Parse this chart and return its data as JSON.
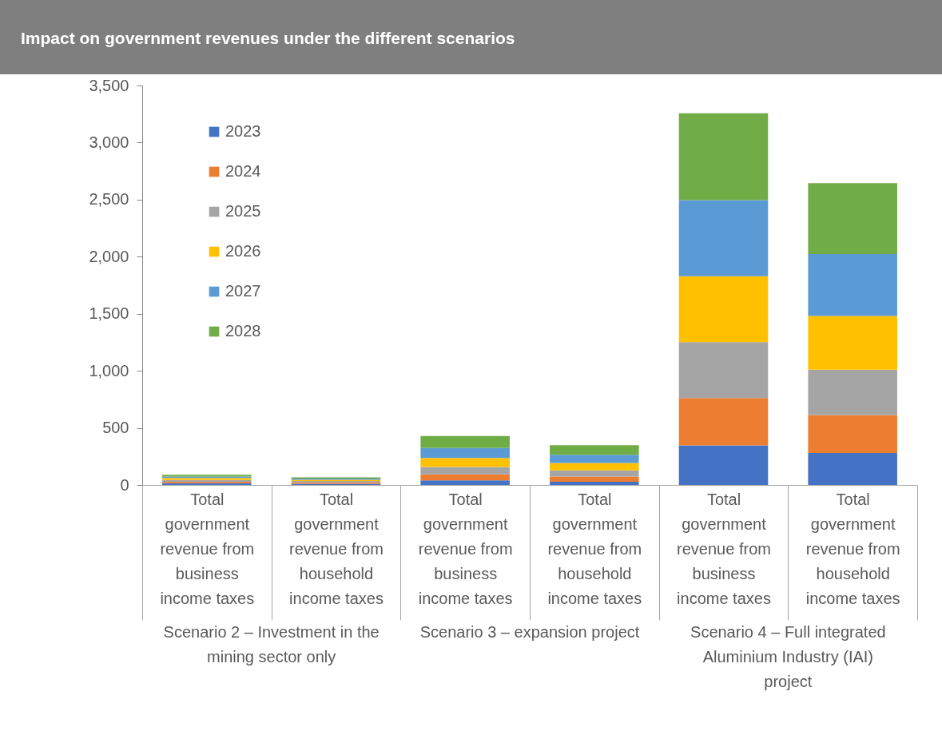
{
  "chart_data": {
    "type": "bar",
    "stacked": true,
    "title": "Impact on government revenues under the different scenarios",
    "categories": [
      "Total government revenue from business income taxes",
      "Total government revenue from household income taxes",
      "Total government revenue from business income taxes",
      "Total government revenue from household income taxes",
      "Total government revenue from business income taxes",
      "Total government revenue from household income taxes"
    ],
    "series": [
      {
        "name": "2023",
        "color": "#4472c4",
        "values": [
          15,
          10,
          41,
          28,
          346,
          280
        ]
      },
      {
        "name": "2024",
        "color": "#ed7d31",
        "values": [
          13,
          12,
          52,
          46,
          415,
          332
        ]
      },
      {
        "name": "2025",
        "color": "#a5a5a5",
        "values": [
          15,
          13,
          65,
          54,
          491,
          398
        ]
      },
      {
        "name": "2026",
        "color": "#ffc000",
        "values": [
          18,
          11,
          78,
          65,
          577,
          471
        ]
      },
      {
        "name": "2027",
        "color": "#5b9bd5",
        "values": [
          13,
          10,
          87,
          72,
          666,
          542
        ]
      },
      {
        "name": "2028",
        "color": "#70ad47",
        "values": [
          15,
          11,
          105,
          84,
          762,
          621
        ]
      }
    ],
    "ylim": [
      0,
      3500
    ],
    "yticks": [
      0,
      {
        "value": 500,
        "label": "500"
      },
      {
        "value": 1000,
        "label": "1,000"
      },
      {
        "value": 1500,
        "label": "1,500"
      },
      {
        "value": 2000,
        "label": "2,000"
      },
      {
        "value": 2500,
        "label": "2,500"
      },
      {
        "value": 3000,
        "label": "3,000"
      },
      {
        "value": 3500,
        "label": "3,500"
      }
    ],
    "grid": false,
    "legend": "top left",
    "annotations": [
      "Scenario 2 – Investment in the mining sector only",
      "Scenario 3 – expansion project",
      "Scenario 4 – Full integrated Aluminium Industry (IAI) project"
    ]
  }
}
